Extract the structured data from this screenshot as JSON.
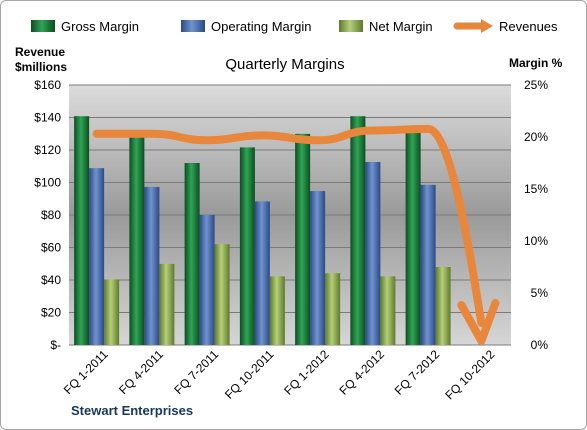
{
  "company": "Stewart Enterprises",
  "chart_data": {
    "type": "bar",
    "title": "Quarterly Margins",
    "left_axis_label_line1": "Revenue",
    "left_axis_label_line2": "$millions",
    "right_axis_label": "Margin %",
    "categories": [
      "FQ 1-2011",
      "FQ 4-2011",
      "FQ 7-2011",
      "FQ 10-2011",
      "FQ 1-2012",
      "FQ 4-2012",
      "FQ 7-2012",
      "FQ 10-2012"
    ],
    "left_ticks": [
      "$-",
      "$20",
      "$40",
      "$60",
      "$80",
      "$100",
      "$120",
      "$140",
      "$160"
    ],
    "right_ticks": [
      "0%",
      "5%",
      "10%",
      "15%",
      "20%",
      "25%"
    ],
    "ylim_left": [
      0,
      160
    ],
    "ylim_right": [
      0,
      25
    ],
    "series": [
      {
        "name": "Gross Margin",
        "axis": "right",
        "color": "#1e7a3c",
        "values": [
          22,
          20,
          17.5,
          19,
          20.3,
          22,
          21,
          0
        ]
      },
      {
        "name": "Operating Margin",
        "axis": "right",
        "color": "#4a6fb0",
        "values": [
          17,
          15.2,
          12.5,
          13.8,
          14.8,
          17.6,
          15.4,
          0
        ]
      },
      {
        "name": "Net Margin",
        "axis": "right",
        "color": "#8fae4e",
        "values": [
          6.3,
          7.8,
          9.7,
          6.6,
          6.9,
          6.6,
          7.5,
          0
        ]
      },
      {
        "name": "Revenues",
        "type": "line",
        "axis": "left",
        "color": "#e8873c",
        "values": [
          130,
          130,
          126,
          129,
          126,
          132,
          133,
          0
        ]
      }
    ],
    "grid": true,
    "legend_position": "top"
  }
}
